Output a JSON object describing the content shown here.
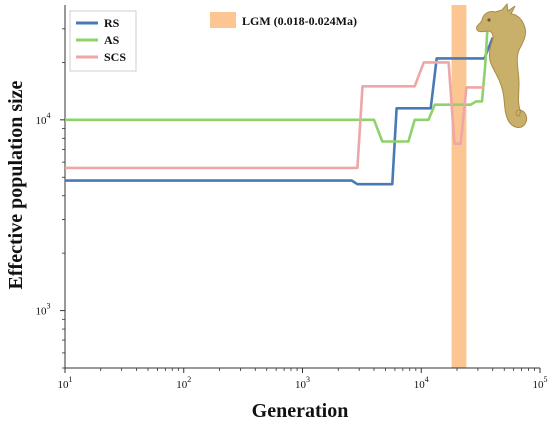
{
  "chart_data": {
    "type": "line",
    "xlabel": "Generation",
    "ylabel": "Effective population size",
    "x_scale": "log",
    "y_scale": "log",
    "xlim": [
      10,
      100000
    ],
    "ylim": [
      500,
      40000
    ],
    "x_ticks": [
      {
        "value": 10,
        "base": "10",
        "exp": "1"
      },
      {
        "value": 100,
        "base": "10",
        "exp": "2"
      },
      {
        "value": 1000,
        "base": "10",
        "exp": "3"
      },
      {
        "value": 10000,
        "base": "10",
        "exp": "4"
      },
      {
        "value": 100000,
        "base": "10",
        "exp": "5"
      }
    ],
    "y_ticks": [
      {
        "value": 1000,
        "base": "10",
        "exp": "3"
      },
      {
        "value": 10000,
        "base": "10",
        "exp": "4"
      }
    ],
    "shaded_region": {
      "label": "LGM (0.018-0.024Ma)",
      "x": [
        18000,
        24000
      ],
      "color": "#fbc691"
    },
    "legend_position": "top-left",
    "grid": false,
    "series": [
      {
        "name": "RS",
        "color": "#4a7ab5",
        "points": [
          [
            10,
            4800
          ],
          [
            2600,
            4800
          ],
          [
            2900,
            4600
          ],
          [
            5700,
            4600
          ],
          [
            6200,
            11500
          ],
          [
            12000,
            11500
          ],
          [
            13500,
            21000
          ],
          [
            34000,
            21000
          ],
          [
            40000,
            27000
          ]
        ]
      },
      {
        "name": "AS",
        "color": "#8fd16b",
        "points": [
          [
            10,
            10000
          ],
          [
            4000,
            10000
          ],
          [
            4700,
            7700
          ],
          [
            7800,
            7700
          ],
          [
            8800,
            10000
          ],
          [
            11500,
            10000
          ],
          [
            13000,
            12000
          ],
          [
            26000,
            12000
          ],
          [
            29000,
            12500
          ],
          [
            32500,
            12500
          ],
          [
            34500,
            19000
          ],
          [
            36000,
            29000
          ]
        ]
      },
      {
        "name": "SCS",
        "color": "#efa6a6",
        "points": [
          [
            10,
            5600
          ],
          [
            2900,
            5600
          ],
          [
            3200,
            15000
          ],
          [
            8800,
            15000
          ],
          [
            10500,
            20000
          ],
          [
            17000,
            20000
          ],
          [
            19000,
            7500
          ],
          [
            21500,
            7500
          ],
          [
            24000,
            14800
          ],
          [
            34000,
            14800
          ]
        ]
      }
    ]
  }
}
